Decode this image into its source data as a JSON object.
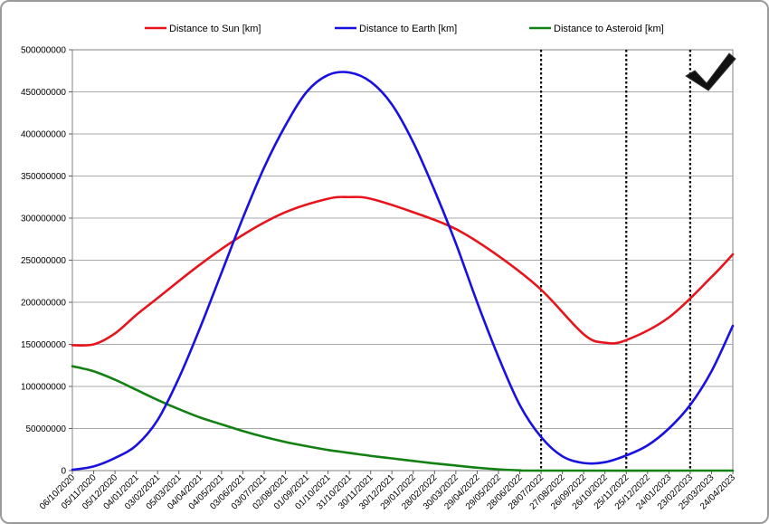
{
  "chart_data": {
    "type": "line",
    "legend_placement": "top",
    "grid": true,
    "ylim": [
      0,
      500000000
    ],
    "y_ticks": [
      "0",
      "50000000",
      "100000000",
      "150000000",
      "200000000",
      "250000000",
      "300000000",
      "350000000",
      "400000000",
      "450000000",
      "500000000"
    ],
    "x_tick_labels": [
      "06/10/2020",
      "05/11/2020",
      "05/12/2020",
      "04/01/2021",
      "03/02/2021",
      "05/03/2021",
      "04/04/2021",
      "04/05/2021",
      "03/06/2021",
      "03/07/2021",
      "02/08/2021",
      "01/09/2021",
      "01/10/2021",
      "31/10/2021",
      "30/11/2021",
      "30/12/2021",
      "29/01/2022",
      "28/02/2022",
      "30/03/2022",
      "29/04/2022",
      "29/05/2022",
      "28/06/2022",
      "28/07/2022",
      "27/08/2022",
      "26/09/2022",
      "26/10/2022",
      "25/11/2022",
      "25/12/2022",
      "24/01/2023",
      "23/02/2023",
      "25/03/2023",
      "24/04/2023"
    ],
    "vertical_markers": [
      "28/07/2022",
      "25/11/2022",
      "23/02/2023"
    ],
    "series": [
      {
        "name": "Distance to Sun [km]",
        "color": "#e8141c",
        "x": [
          "06/10/2020",
          "05/11/2020",
          "05/12/2020",
          "04/01/2021",
          "03/02/2021",
          "04/04/2021",
          "03/06/2021",
          "02/08/2021",
          "01/10/2021",
          "31/10/2021",
          "30/11/2021",
          "29/01/2022",
          "30/03/2022",
          "29/05/2022",
          "28/07/2022",
          "26/09/2022",
          "26/10/2022",
          "25/11/2022",
          "24/01/2023",
          "25/03/2023",
          "24/04/2023"
        ],
        "values": [
          149000000,
          150000000,
          163000000,
          185000000,
          205000000,
          245000000,
          280000000,
          307000000,
          323000000,
          325000000,
          323000000,
          307000000,
          287000000,
          255000000,
          215000000,
          162000000,
          152000000,
          155000000,
          182000000,
          230000000,
          257000000
        ]
      },
      {
        "name": "Distance to Earth [km]",
        "color": "#1a10e0",
        "x": [
          "06/10/2020",
          "05/11/2020",
          "05/12/2020",
          "04/01/2021",
          "03/02/2021",
          "05/03/2021",
          "04/04/2021",
          "04/05/2021",
          "03/06/2021",
          "03/07/2021",
          "02/08/2021",
          "01/09/2021",
          "01/10/2021",
          "31/10/2021",
          "30/11/2021",
          "30/12/2021",
          "29/01/2022",
          "28/02/2022",
          "30/03/2022",
          "29/04/2022",
          "29/05/2022",
          "28/06/2022",
          "28/07/2022",
          "27/08/2022",
          "26/09/2022",
          "26/10/2022",
          "25/11/2022",
          "25/12/2022",
          "24/01/2023",
          "23/02/2023",
          "25/03/2023",
          "24/04/2023"
        ],
        "values": [
          1000000,
          5000000,
          15000000,
          30000000,
          60000000,
          110000000,
          170000000,
          235000000,
          300000000,
          360000000,
          410000000,
          450000000,
          470000000,
          473000000,
          462000000,
          435000000,
          390000000,
          333000000,
          270000000,
          200000000,
          135000000,
          78000000,
          40000000,
          17000000,
          9000000,
          10000000,
          18000000,
          30000000,
          50000000,
          78000000,
          118000000,
          172000000
        ]
      },
      {
        "name": "Distance to Asteroid [km]",
        "color": "#128012",
        "x": [
          "06/10/2020",
          "05/11/2020",
          "05/12/2020",
          "04/01/2021",
          "03/02/2021",
          "05/03/2021",
          "04/04/2021",
          "04/05/2021",
          "03/06/2021",
          "03/07/2021",
          "02/08/2021",
          "01/09/2021",
          "01/10/2021",
          "31/10/2021",
          "30/11/2021",
          "30/12/2021",
          "29/01/2022",
          "28/02/2022",
          "30/03/2022",
          "29/04/2022",
          "29/05/2022",
          "28/06/2022",
          "28/07/2022",
          "24/04/2023"
        ],
        "values": [
          124000000,
          118000000,
          108000000,
          96000000,
          84000000,
          73000000,
          63000000,
          55000000,
          47000000,
          40000000,
          34000000,
          29000000,
          24500000,
          21000000,
          17500000,
          14500000,
          11500000,
          8500000,
          6000000,
          3500000,
          1500000,
          300000,
          0,
          0
        ]
      }
    ]
  }
}
